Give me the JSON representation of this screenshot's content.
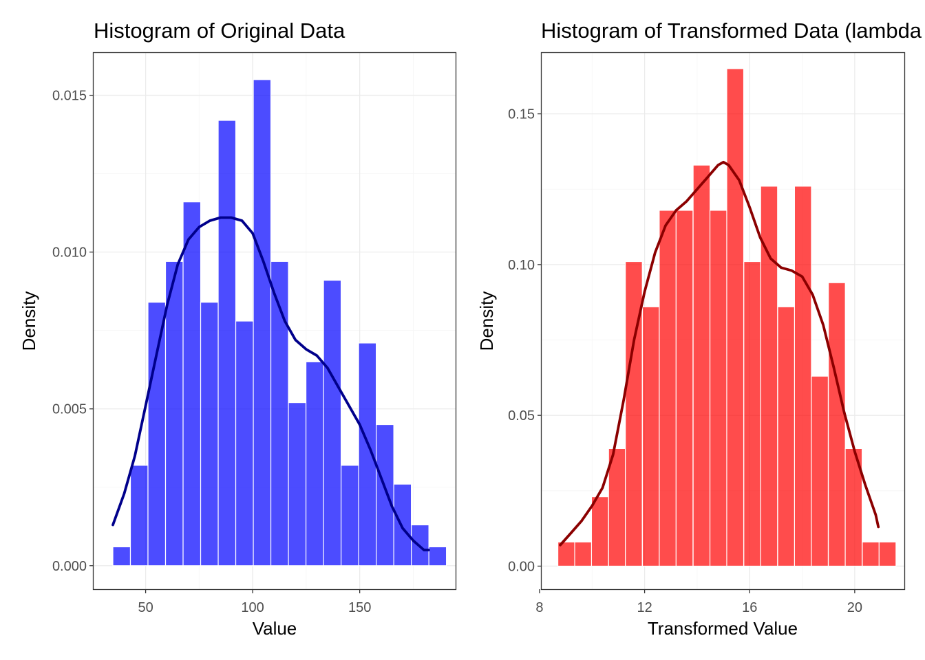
{
  "colors": {
    "left_bar": "#0000ff",
    "left_line": "#00008b",
    "right_bar": "#ff0000",
    "right_line": "#8b0000",
    "bar_opacity": 0.7
  },
  "chart_data": [
    {
      "type": "histogram",
      "title": "Histogram of Original Data",
      "xlabel": "Value",
      "ylabel": "Density",
      "xlim": [
        25.7,
        194.8
      ],
      "ylim": [
        -0.00075,
        0.01635
      ],
      "x_ticks": [
        50,
        100,
        150
      ],
      "x_tick_labels": [
        "50",
        "100",
        "150"
      ],
      "y_ticks": [
        0.0,
        0.005,
        0.01,
        0.015
      ],
      "y_tick_labels": [
        "0.000",
        "0.005",
        "0.010",
        "0.015"
      ],
      "grid": true,
      "bin_width": 8.2,
      "bin_centers": [
        38.8,
        47.0,
        55.2,
        63.4,
        71.6,
        79.8,
        88.0,
        96.2,
        104.4,
        112.6,
        120.8,
        129.0,
        137.2,
        145.4,
        153.6,
        161.8,
        170.0,
        178.2,
        186.4
      ],
      "values": [
        0.0006,
        0.0032,
        0.0084,
        0.0097,
        0.0116,
        0.0084,
        0.0142,
        0.0078,
        0.0155,
        0.0097,
        0.0052,
        0.0065,
        0.0091,
        0.0032,
        0.0071,
        0.0045,
        0.0026,
        0.0013,
        0.0006
      ],
      "density_curve": {
        "x": [
          34.7,
          40,
          45,
          50,
          55,
          60,
          65,
          70,
          75,
          80,
          85,
          90,
          95,
          100,
          105,
          110,
          115,
          120,
          125,
          130,
          135,
          140,
          145,
          150,
          155,
          160,
          165,
          170,
          175,
          180,
          182.2
        ],
        "y": [
          0.0013,
          0.0023,
          0.0035,
          0.0051,
          0.0067,
          0.0083,
          0.0096,
          0.0104,
          0.0108,
          0.011,
          0.0111,
          0.0111,
          0.011,
          0.0106,
          0.0097,
          0.0087,
          0.0078,
          0.0072,
          0.0069,
          0.0067,
          0.0063,
          0.0057,
          0.0051,
          0.0045,
          0.0037,
          0.0028,
          0.0019,
          0.0012,
          0.0008,
          0.0005,
          0.0005
        ]
      }
    },
    {
      "type": "histogram",
      "title": "Histogram of Transformed Data (lambda",
      "xlabel": "Transformed Value",
      "ylabel": "Density",
      "xlim": [
        8.08,
        21.89
      ],
      "ylim": [
        -0.00765,
        0.1702
      ],
      "x_ticks": [
        8,
        12,
        16,
        20
      ],
      "x_tick_labels": [
        "8",
        "12",
        "16",
        "20"
      ],
      "y_ticks": [
        0.0,
        0.05,
        0.1,
        0.15
      ],
      "y_tick_labels": [
        "0.00",
        "0.05",
        "0.10",
        "0.15"
      ],
      "grid": true,
      "bin_width": 0.644,
      "bin_centers": [
        9.02,
        9.66,
        10.3,
        10.95,
        11.59,
        12.24,
        12.88,
        13.52,
        14.17,
        14.81,
        15.45,
        16.1,
        16.74,
        17.39,
        18.03,
        18.67,
        19.32,
        19.96,
        20.61,
        21.25
      ],
      "values": [
        0.008,
        0.008,
        0.023,
        0.039,
        0.101,
        0.086,
        0.118,
        0.118,
        0.133,
        0.118,
        0.165,
        0.101,
        0.126,
        0.086,
        0.126,
        0.063,
        0.094,
        0.039,
        0.008,
        0.008
      ],
      "density_curve": {
        "x": [
          8.79,
          9.2,
          9.6,
          10.0,
          10.4,
          10.8,
          11.2,
          11.6,
          12.0,
          12.4,
          12.8,
          13.2,
          13.6,
          14.0,
          14.4,
          14.8,
          15.0,
          15.2,
          15.6,
          16.0,
          16.4,
          16.8,
          17.2,
          17.6,
          18.0,
          18.4,
          18.8,
          19.2,
          19.6,
          20.0,
          20.4,
          20.8,
          20.9
        ],
        "y": [
          0.007,
          0.011,
          0.015,
          0.02,
          0.026,
          0.037,
          0.055,
          0.075,
          0.091,
          0.104,
          0.113,
          0.118,
          0.121,
          0.125,
          0.129,
          0.133,
          0.134,
          0.133,
          0.128,
          0.119,
          0.109,
          0.102,
          0.099,
          0.098,
          0.096,
          0.09,
          0.08,
          0.066,
          0.051,
          0.038,
          0.027,
          0.017,
          0.013
        ]
      }
    }
  ]
}
